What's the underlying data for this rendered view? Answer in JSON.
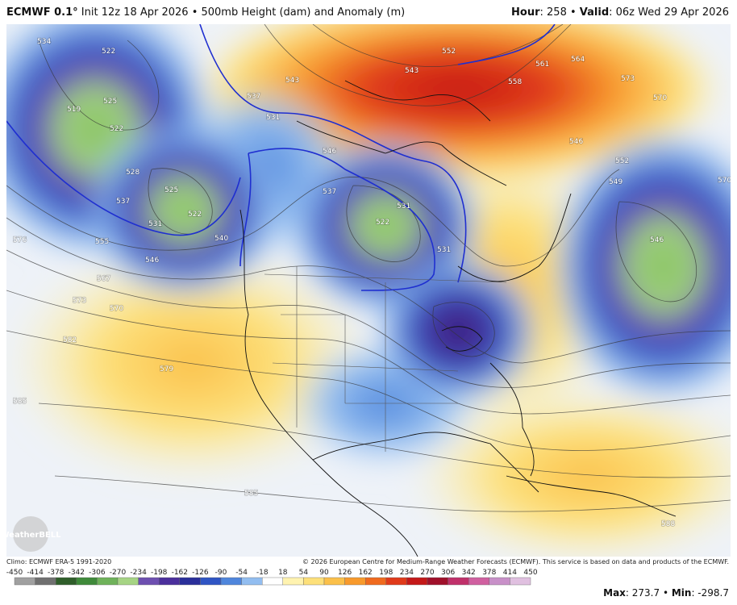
{
  "header": {
    "left": [
      "ECMWF 0.1°",
      " Init 12z 18 Apr 2026 • 500mb Height (dam) and Anomaly (m)"
    ],
    "right": [
      "Hour",
      ": 258 • ",
      "Valid",
      ": 06z Wed 29 Apr 2026"
    ]
  },
  "map": {
    "watermark": "WeatherBELL",
    "contour_labels": [
      "534",
      "522",
      "519",
      "525",
      "522",
      "528",
      "525",
      "531",
      "537",
      "522",
      "546",
      "540",
      "555",
      "567",
      "573",
      "570",
      "576",
      "582",
      "579",
      "585",
      "585",
      "537",
      "531",
      "543",
      "546",
      "537",
      "531",
      "522",
      "531",
      "543",
      "552",
      "558",
      "561",
      "564",
      "573",
      "570",
      "546",
      "552",
      "549",
      "570",
      "546",
      "588"
    ]
  },
  "footer": {
    "climo": "Climo: ECMWF ERA-5 1991-2020",
    "copyright": "© 2026 European Centre for Medium-Range Weather Forecasts (ECMWF). This service is based on data and products of the ECMWF."
  },
  "colorbar": {
    "ticks": [
      -450,
      -414,
      -378,
      -342,
      -306,
      -270,
      -234,
      -198,
      -162,
      -126,
      -90,
      -54,
      -18,
      18,
      54,
      90,
      126,
      162,
      198,
      234,
      270,
      306,
      342,
      378,
      414,
      450
    ],
    "colors": [
      "#a0a0a0",
      "#707070",
      "#2f5e2a",
      "#3f8a3a",
      "#6fb25a",
      "#a6d484",
      "#6d4fb0",
      "#4b2f9c",
      "#2a2f9a",
      "#2f55c4",
      "#4f86dc",
      "#92bdf0",
      "#ffffff",
      "#fff3b0",
      "#fde07a",
      "#fbc04a",
      "#f89a2c",
      "#f06a1e",
      "#e03a1a",
      "#c41818",
      "#a0102a",
      "#c0306a",
      "#d060a0",
      "#c890c8",
      "#e0c0e0"
    ]
  },
  "stats": [
    "Max",
    ": 273.7 • ",
    "Min",
    ": -298.7"
  ]
}
